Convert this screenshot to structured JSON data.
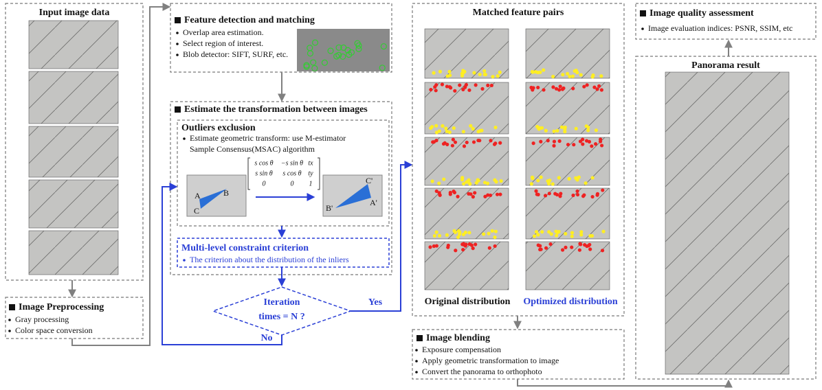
{
  "input": {
    "title": "Input image data"
  },
  "preprocessing": {
    "title": "Image Preprocessing",
    "items": [
      "Gray processing",
      "Color space conversion"
    ]
  },
  "feature": {
    "title": "Feature detection and matching",
    "items": [
      "Overlap area estimation.",
      "Select region of interest.",
      "Blob detector: SIFT, SURF, etc."
    ]
  },
  "transform": {
    "title": "Estimate the transformation between images",
    "outliers": {
      "title": "Outliers exclusion",
      "items": [
        "Estimate geometric transform:  use M-estimator",
        "Sample Consensus(MSAC) algorithm"
      ]
    },
    "matrix": [
      [
        "s cos θ",
        "−s sin θ",
        "tx"
      ],
      [
        "s sin θ",
        "s cos θ",
        "ty"
      ],
      [
        "0",
        "0",
        "1"
      ]
    ],
    "left_labels": [
      "A",
      "B",
      "C"
    ],
    "right_labels": [
      "C'",
      "B'",
      "A'"
    ],
    "criterion": {
      "title": "Multi-level constraint criterion",
      "items": [
        "The criterion about the distribution of the inliers"
      ]
    }
  },
  "decision": {
    "lines": [
      "Iteration",
      "times = N ?"
    ],
    "yes": "Yes",
    "no": "No"
  },
  "matched": {
    "title": "Matched feature pairs",
    "left_caption": "Original distribution",
    "right_caption": "Optimized distribution"
  },
  "blending": {
    "title": "Image blending",
    "items": [
      "Exposure compensation",
      "Apply geometric transformation to image",
      "Convert the panorama to orthophoto"
    ]
  },
  "quality": {
    "title": "Image quality assessment",
    "items": [
      "Image evaluation indices: PSNR, SSIM, etc"
    ]
  },
  "panorama": {
    "title": "Panorama result"
  }
}
